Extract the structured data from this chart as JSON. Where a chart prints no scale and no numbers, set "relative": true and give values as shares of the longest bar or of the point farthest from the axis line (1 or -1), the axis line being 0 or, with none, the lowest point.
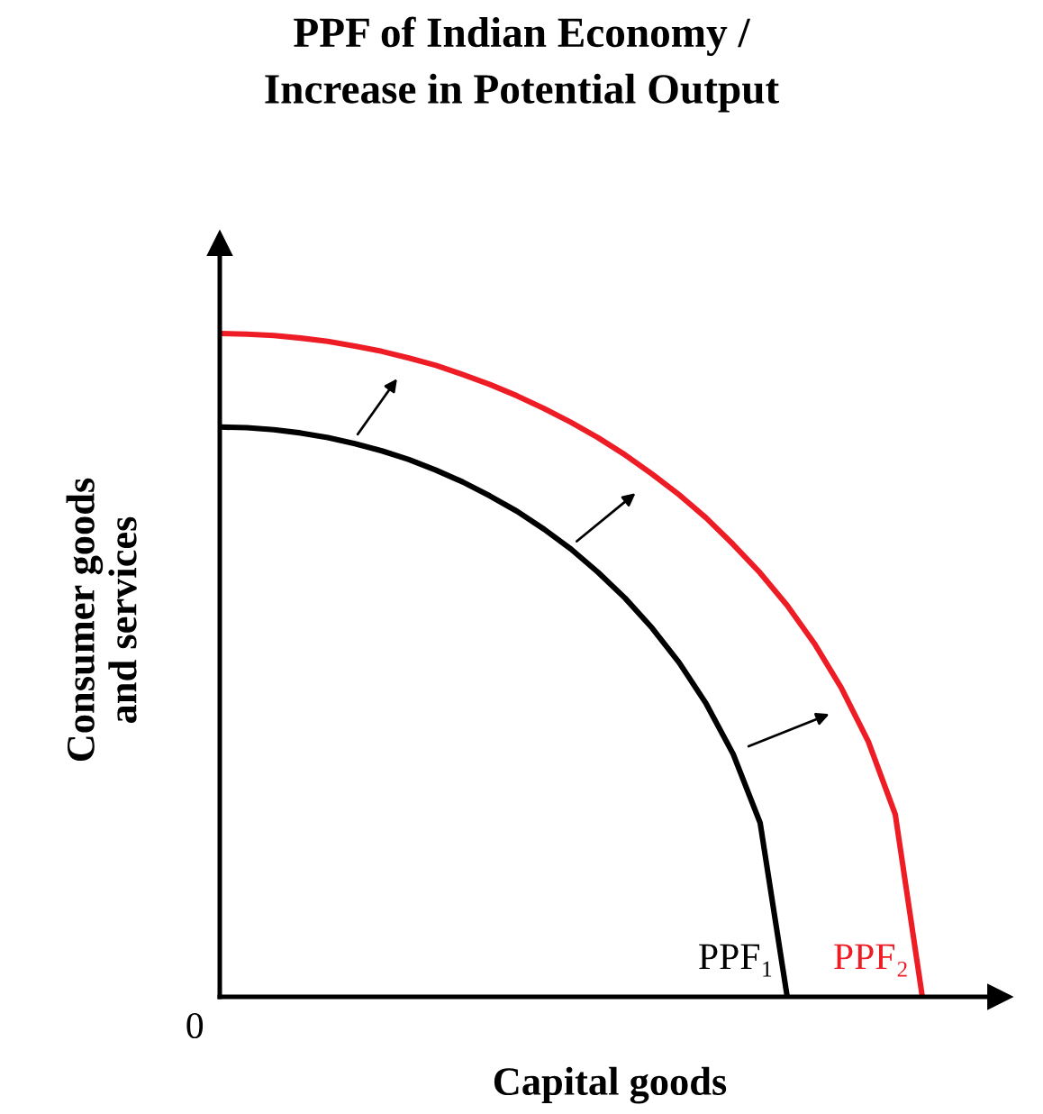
{
  "chart_data": {
    "type": "line",
    "title": "PPF of Indian Economy /\nIncrease in Potential Output",
    "xlabel": "Capital goods",
    "ylabel": "Consumer goods\nand services",
    "relative": true,
    "categories": [
      null,
      null,
      null,
      null,
      null,
      null,
      null,
      null,
      null,
      null,
      null,
      null,
      null,
      null,
      null,
      null,
      null,
      null,
      null,
      null,
      null,
      null,
      null,
      null,
      null,
      null,
      null
    ],
    "series": [
      {
        "name": "PPF₁",
        "color": "#000000",
        "values": [
          0.859,
          0.858,
          0.855,
          0.85,
          0.843,
          0.834,
          0.823,
          0.81,
          0.794,
          0.776,
          0.755,
          0.732,
          0.705,
          0.675,
          0.64,
          0.601,
          0.556,
          0.504,
          0.442,
          0.366,
          0.262,
          0,
          null,
          null,
          null,
          null,
          null
        ]
      },
      {
        "name": "PPF₂",
        "color": "#ee1c25",
        "values": [
          1,
          0.999,
          0.997,
          0.993,
          0.988,
          0.981,
          0.973,
          0.963,
          0.952,
          0.938,
          0.923,
          0.906,
          0.887,
          0.866,
          0.843,
          0.817,
          0.788,
          0.757,
          0.722,
          0.682,
          0.639,
          0.59,
          0.533,
          0.466,
          0.385,
          0.275,
          0
        ]
      }
    ],
    "annotations": [
      "0"
    ]
  }
}
